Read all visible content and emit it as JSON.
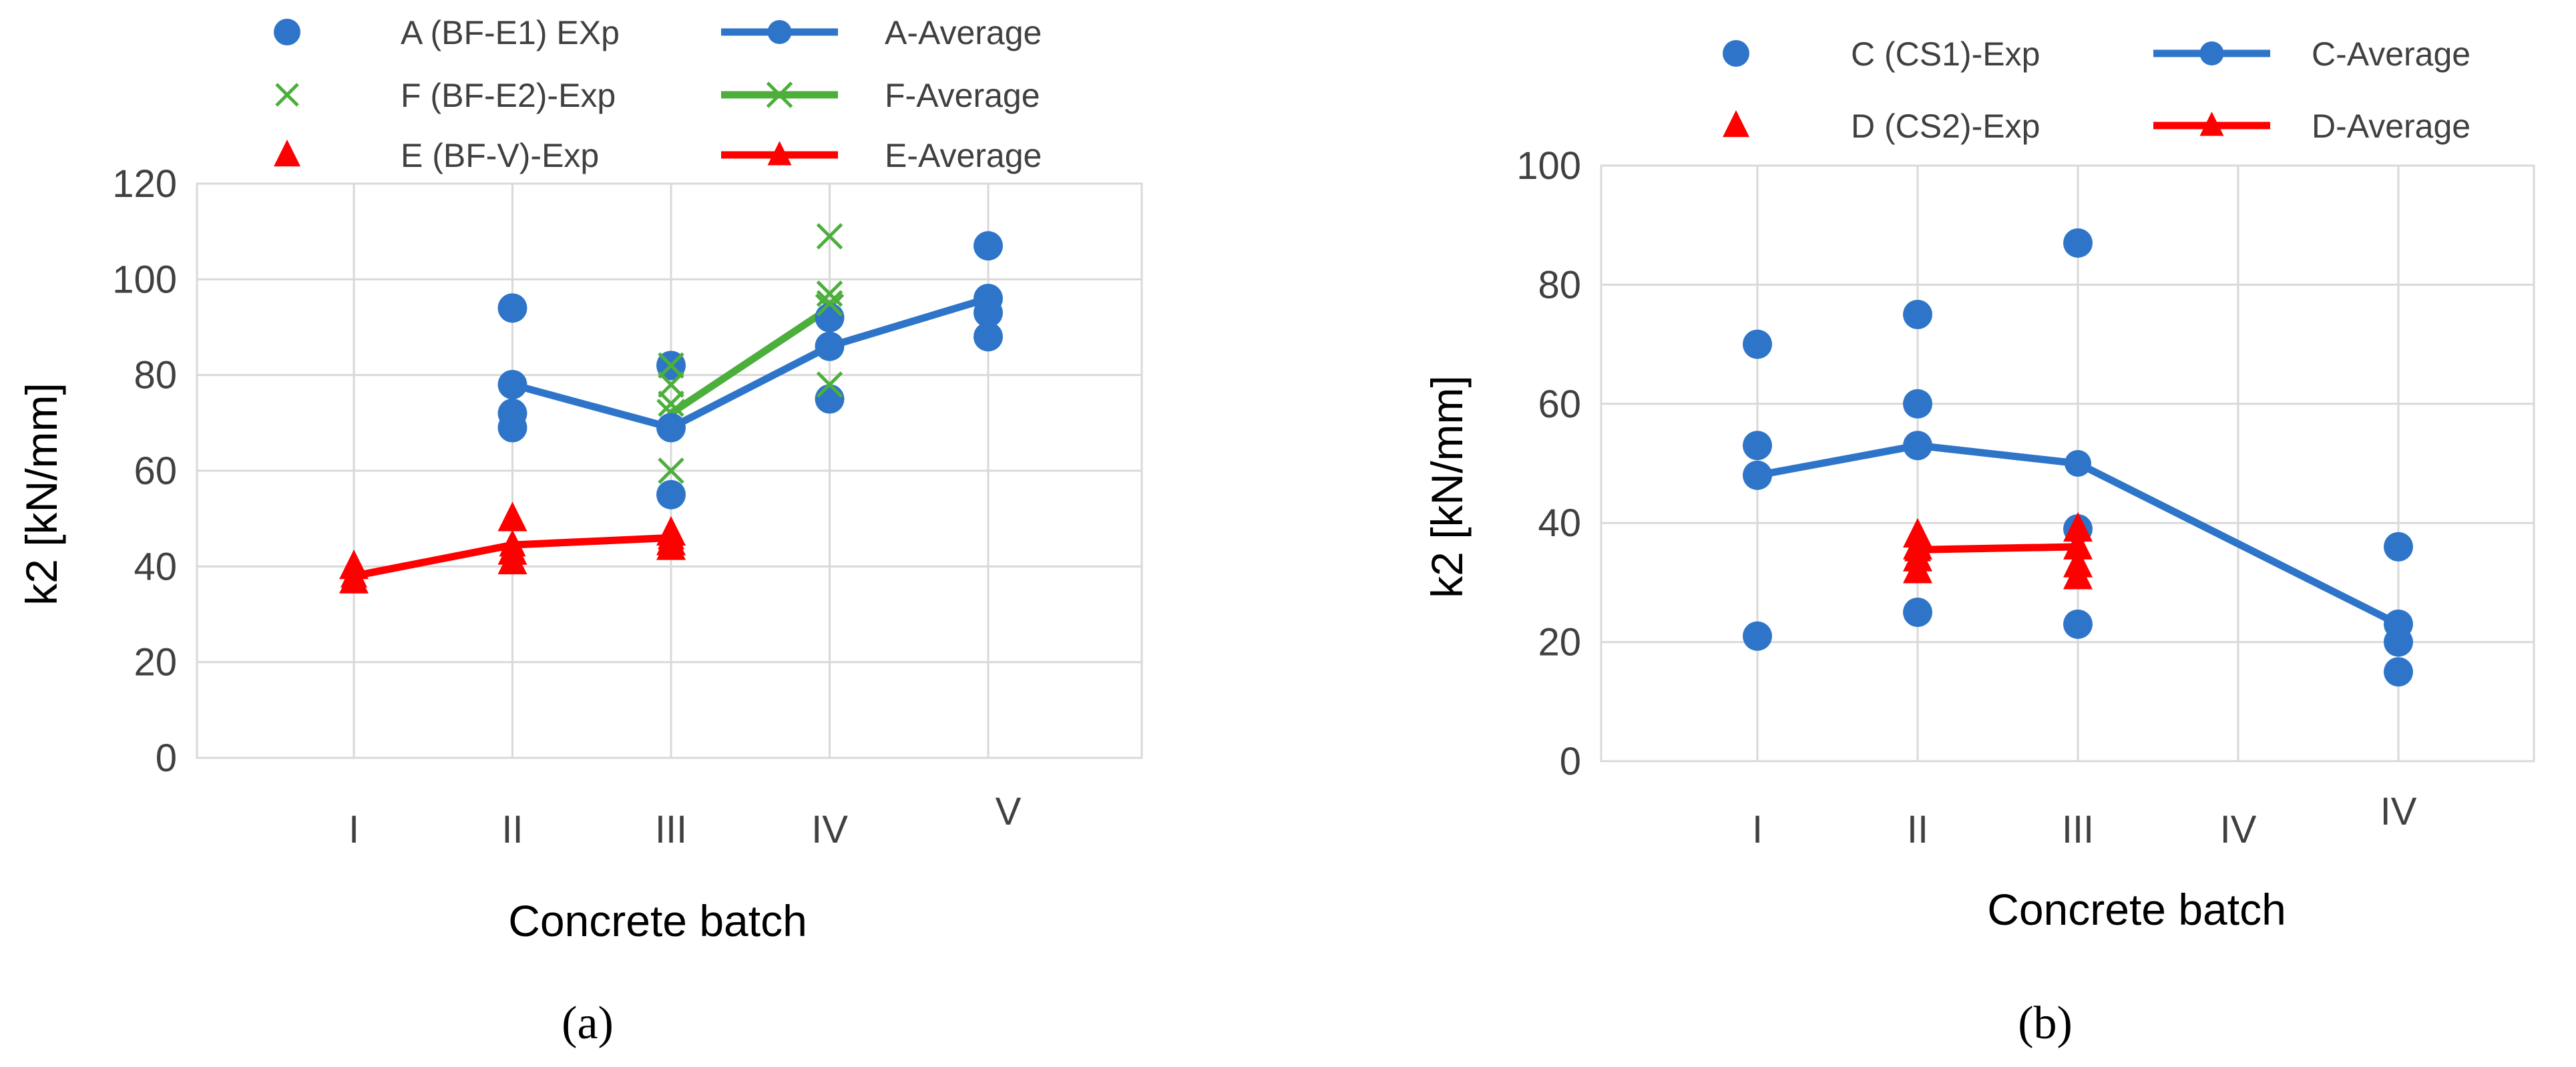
{
  "chart_data": [
    {
      "type": "scatter",
      "panel": "(a)",
      "ylabel": "k2  [kN/mm]",
      "xlabel": "Concrete batch",
      "ylim": [
        0,
        120
      ],
      "yticks": [
        0,
        20,
        40,
        60,
        80,
        100,
        120
      ],
      "categories": [
        "I",
        "II",
        "III",
        "IV",
        "V"
      ],
      "grid": {
        "horizontal": true,
        "vertical": true
      },
      "legend_position": "top",
      "series": [
        {
          "name": "A (BF-E1) EXp",
          "kind": "points",
          "marker": "circle",
          "color": "#2e75c9",
          "points": [
            [
              2,
              94
            ],
            [
              2,
              78
            ],
            [
              2,
              72
            ],
            [
              2,
              69
            ],
            [
              3,
              82
            ],
            [
              3,
              69
            ],
            [
              3,
              55
            ],
            [
              4,
              92
            ],
            [
              4,
              86
            ],
            [
              4,
              75
            ],
            [
              5,
              107
            ],
            [
              5,
              96
            ],
            [
              5,
              93
            ],
            [
              5,
              88
            ]
          ]
        },
        {
          "name": "F (BF-E2)-Exp",
          "kind": "points",
          "marker": "x",
          "color": "#4caf3c",
          "points": [
            [
              3,
              82
            ],
            [
              3,
              78
            ],
            [
              3,
              74
            ],
            [
              3,
              60
            ],
            [
              4,
              109
            ],
            [
              4,
              97
            ],
            [
              4,
              95
            ],
            [
              4,
              78
            ]
          ]
        },
        {
          "name": "E (BF-V)-Exp",
          "kind": "points",
          "marker": "triangle",
          "color": "#ff0000",
          "points": [
            [
              1,
              40
            ],
            [
              1,
              37
            ],
            [
              2,
              50
            ],
            [
              2,
              43
            ],
            [
              2,
              41
            ],
            [
              3,
              47
            ],
            [
              3,
              45
            ],
            [
              3,
              44
            ]
          ]
        },
        {
          "name": "A-Average",
          "kind": "line",
          "marker": "circle",
          "color": "#2e75c9",
          "points": [
            [
              2,
              78
            ],
            [
              3,
              69
            ],
            [
              4,
              86
            ],
            [
              5,
              96
            ]
          ]
        },
        {
          "name": "F-Average",
          "kind": "line",
          "marker": "x",
          "color": "#4caf3c",
          "points": [
            [
              3,
              72
            ],
            [
              4,
              94
            ]
          ]
        },
        {
          "name": "E-Average",
          "kind": "line",
          "marker": "triangle",
          "color": "#ff0000",
          "points": [
            [
              1,
              38
            ],
            [
              2,
              44.5
            ],
            [
              3,
              46
            ]
          ]
        }
      ]
    },
    {
      "type": "scatter",
      "panel": "(b)",
      "ylabel": "k2  [kN/mm]",
      "xlabel": "Concrete batch",
      "ylim": [
        0,
        100
      ],
      "yticks": [
        0,
        20,
        40,
        60,
        80,
        100
      ],
      "categories": [
        "I",
        "II",
        "III",
        "IV",
        "IV"
      ],
      "grid": {
        "horizontal": true,
        "vertical": true
      },
      "legend_position": "top",
      "series": [
        {
          "name": "C (CS1)-Exp",
          "kind": "points",
          "marker": "circle",
          "color": "#2e75c9",
          "points": [
            [
              1,
              70
            ],
            [
              1,
              53
            ],
            [
              1,
              48
            ],
            [
              1,
              21
            ],
            [
              2,
              75
            ],
            [
              2,
              60
            ],
            [
              2,
              53
            ],
            [
              2,
              25
            ],
            [
              3,
              87
            ],
            [
              3,
              39
            ],
            [
              3,
              23
            ],
            [
              5,
              36
            ],
            [
              5,
              23
            ],
            [
              5,
              20
            ],
            [
              5,
              15
            ]
          ]
        },
        {
          "name": "D (CS2)-Exp",
          "kind": "points",
          "marker": "triangle",
          "color": "#ff0000",
          "points": [
            [
              2,
              38
            ],
            [
              2,
              36
            ],
            [
              2,
              34
            ],
            [
              2,
              32
            ],
            [
              3,
              39
            ],
            [
              3,
              36
            ],
            [
              3,
              33
            ],
            [
              3,
              31
            ]
          ]
        },
        {
          "name": "C-Average",
          "kind": "line",
          "marker": "circle",
          "color": "#2e75c9",
          "points": [
            [
              1,
              48
            ],
            [
              2,
              53
            ],
            [
              3,
              50
            ],
            [
              5,
              23
            ]
          ]
        },
        {
          "name": "D-Average",
          "kind": "line",
          "marker": "triangle",
          "color": "#ff0000",
          "points": [
            [
              2,
              35.5
            ],
            [
              3,
              36
            ]
          ]
        }
      ]
    }
  ]
}
